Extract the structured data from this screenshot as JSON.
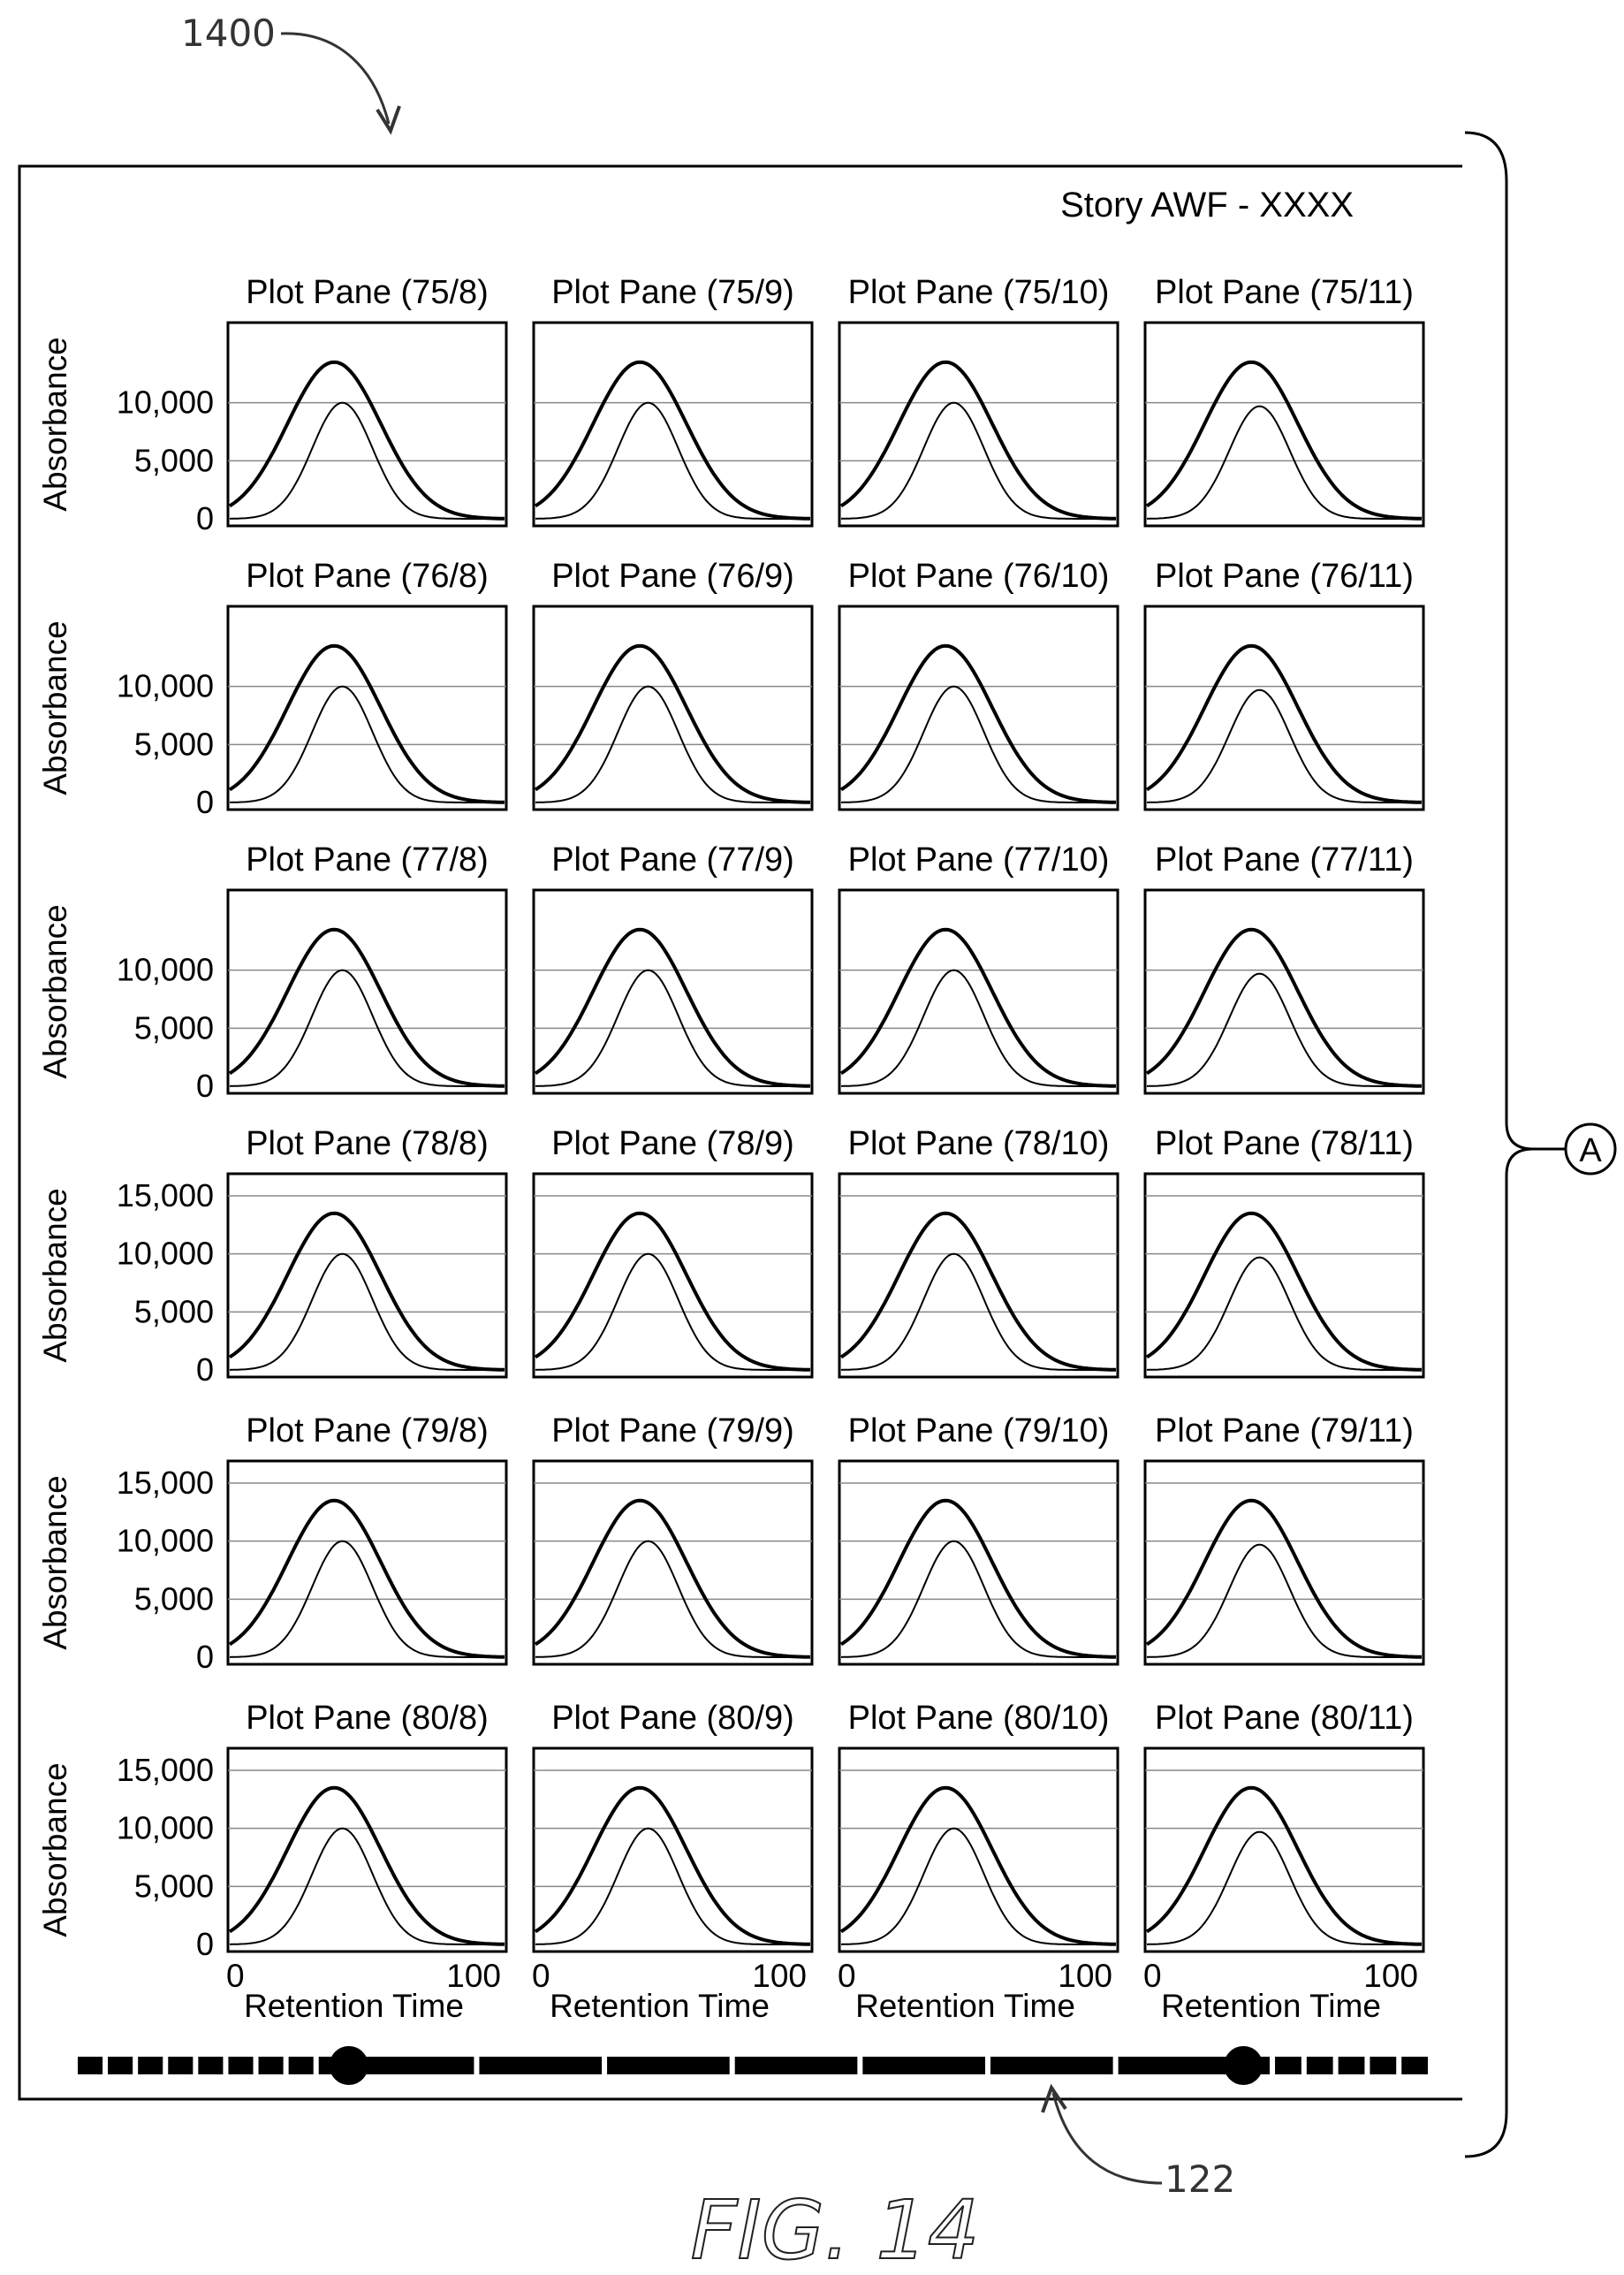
{
  "figure": {
    "ref_main": "1400",
    "ref_slider": "122",
    "connector_label": "A",
    "fig_label": "FIG. 14"
  },
  "panel": {
    "title": "Story AWF - XXXX"
  },
  "slider": {
    "handle_left_fraction": 0.2,
    "handle_right_fraction": 0.86
  },
  "chart_data": {
    "type": "line",
    "ylabel": "Absorbance",
    "xlabel": "Retention Time",
    "x_ticks": [
      "0",
      "100"
    ],
    "xlim": [
      0,
      100
    ],
    "grid": "horizontal",
    "rows": [
      {
        "row": 75,
        "ylim": [
          0,
          15000
        ],
        "yticks": [
          0,
          5000,
          10000
        ],
        "ytick_labels": [
          "0",
          "5,000",
          "10,000"
        ]
      },
      {
        "row": 76,
        "ylim": [
          0,
          15000
        ],
        "yticks": [
          0,
          5000,
          10000
        ],
        "ytick_labels": [
          "0",
          "5,000",
          "10,000"
        ]
      },
      {
        "row": 77,
        "ylim": [
          0,
          15000
        ],
        "yticks": [
          0,
          5000,
          10000
        ],
        "ytick_labels": [
          "0",
          "5,000",
          "10,000"
        ]
      },
      {
        "row": 78,
        "ylim": [
          0,
          15000
        ],
        "yticks": [
          0,
          5000,
          10000,
          15000
        ],
        "ytick_labels": [
          "0",
          "5,000",
          "10,000",
          "15,000"
        ]
      },
      {
        "row": 79,
        "ylim": [
          0,
          15000
        ],
        "yticks": [
          0,
          5000,
          10000,
          15000
        ],
        "ytick_labels": [
          "0",
          "5,000",
          "10,000",
          "15,000"
        ]
      },
      {
        "row": 80,
        "ylim": [
          0,
          15000
        ],
        "yticks": [
          0,
          5000,
          10000,
          15000
        ],
        "ytick_labels": [
          "0",
          "5,000",
          "10,000",
          "15,000"
        ]
      }
    ],
    "columns": [
      8,
      9,
      10,
      11
    ],
    "pane_titles": [
      [
        "Plot Pane (75/8)",
        "Plot Pane (75/9)",
        "Plot Pane (75/10)",
        "Plot Pane (75/11)"
      ],
      [
        "Plot Pane (76/8)",
        "Plot Pane (76/9)",
        "Plot Pane (76/10)",
        "Plot Pane (76/11)"
      ],
      [
        "Plot Pane (77/8)",
        "Plot Pane (77/9)",
        "Plot Pane (77/10)",
        "Plot Pane (77/11)"
      ],
      [
        "Plot Pane (78/8)",
        "Plot Pane (78/9)",
        "Plot Pane (78/10)",
        "Plot Pane (78/11)"
      ],
      [
        "Plot Pane (79/8)",
        "Plot Pane (79/9)",
        "Plot Pane (79/10)",
        "Plot Pane (79/11)"
      ],
      [
        "Plot Pane (80/8)",
        "Plot Pane (80/9)",
        "Plot Pane (80/10)",
        "Plot Pane (80/11)"
      ]
    ],
    "series": [
      {
        "role": "outer peak",
        "peak_x": 38,
        "peak_y": 13500,
        "width": 17,
        "baseline": 0
      },
      {
        "role": "inner peak",
        "peak_x": 41,
        "peak_y": 10000,
        "width": 11,
        "baseline": 0
      }
    ],
    "inner_peak_by_column": [
      10000,
      10000,
      10000,
      9700
    ]
  }
}
